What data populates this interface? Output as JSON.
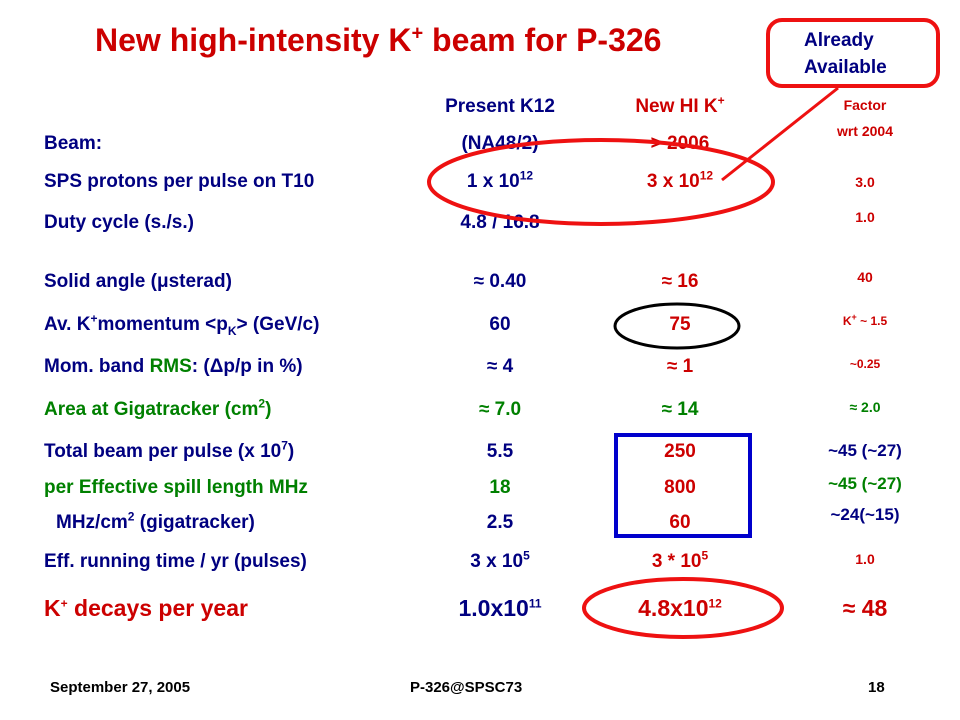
{
  "title": {
    "prefix": "New high-intensity K",
    "sup": "+",
    "suffix": " beam for P-326"
  },
  "callout": {
    "line1": "Already",
    "line2": "Available"
  },
  "headers": {
    "col1_line1": "Present K12",
    "col1_line2": "(NA48/2)",
    "col2_line1": "New HI K",
    "col2_sup": "+",
    "col2_line2": "> 2006",
    "col3_line1": "Factor",
    "col3_line2": "wrt 2004",
    "beam_label": "Beam:"
  },
  "rows": {
    "sps": {
      "label": "SPS protons per pulse on T10",
      "c1": "1 x 10",
      "c1_sup": "12",
      "c2": "3 x 10",
      "c2_sup": "12",
      "c3": "3.0"
    },
    "duty": {
      "label": "Duty cycle (s./s.)",
      "c1": "4.8 / 16.8",
      "c3": "1.0"
    },
    "solid": {
      "label_a": "Solid angle (",
      "label_mu": "μ",
      "label_b": "sterad)",
      "c1": "≈ 0.40",
      "c2": "≈ 16",
      "c3": "40"
    },
    "mom": {
      "label_a": "Av. K",
      "label_sup": "+",
      "label_b": "momentum <p",
      "label_sub": "K",
      "label_c": "> (GeV/c)",
      "c1": "60",
      "c2": "75",
      "c3": "K",
      "c3_sup": "+",
      "c3_b": " ~ 1.5"
    },
    "band": {
      "label_a": "Mom. band ",
      "label_rms": "RMS",
      "label_b": ": (",
      "label_delta": "Δ",
      "label_c": "p/p in %)",
      "c1": "≈ 4",
      "c2": "≈ 1",
      "c3": "~0.25"
    },
    "area": {
      "label_a": "Area at Gigatracker (cm",
      "label_sup": "2",
      "label_b": ")",
      "c1": "≈ 7.0",
      "c2": "≈ 14",
      "c3": "≈ 2.0"
    },
    "total": {
      "label_a": "Total beam per pulse (x 10",
      "label_sup": "7",
      "label_b": ")",
      "c1": "5.5",
      "c2": "250",
      "c3": "~45 (~27)"
    },
    "spill": {
      "label": "per Effective spill length MHz",
      "c1": "18",
      "c2": "800",
      "c3": "~45 (~27)"
    },
    "mhz": {
      "label_a": "MHz/cm",
      "label_sup": "2",
      "label_b": " (gigatracker)",
      "c1": "2.5",
      "c2": "60",
      "c3": "~24(~15)"
    },
    "eff": {
      "label": "Eff. running time / yr (pulses)",
      "c1": "3 x 10",
      "c1_sup": "5",
      "c2": "3 * 10",
      "c2_sup": "5",
      "c3": "1.0"
    },
    "kdec": {
      "label_a": "K",
      "label_sup": "+",
      "label_b": " decays per year",
      "c1": "1.0x10",
      "c1_sup": "11",
      "c2": "4.8x10",
      "c2_sup": "12",
      "c3": "≈ 48"
    }
  },
  "footer": {
    "date": "September 27, 2005",
    "center": "P-326@SPSC73",
    "page": "18"
  },
  "colors": {
    "title": "#cc0000",
    "navy": "#000080",
    "red": "#cc0000",
    "green": "#008000",
    "highlight_ellipse": "#ee1111",
    "box": "#0000cc"
  }
}
